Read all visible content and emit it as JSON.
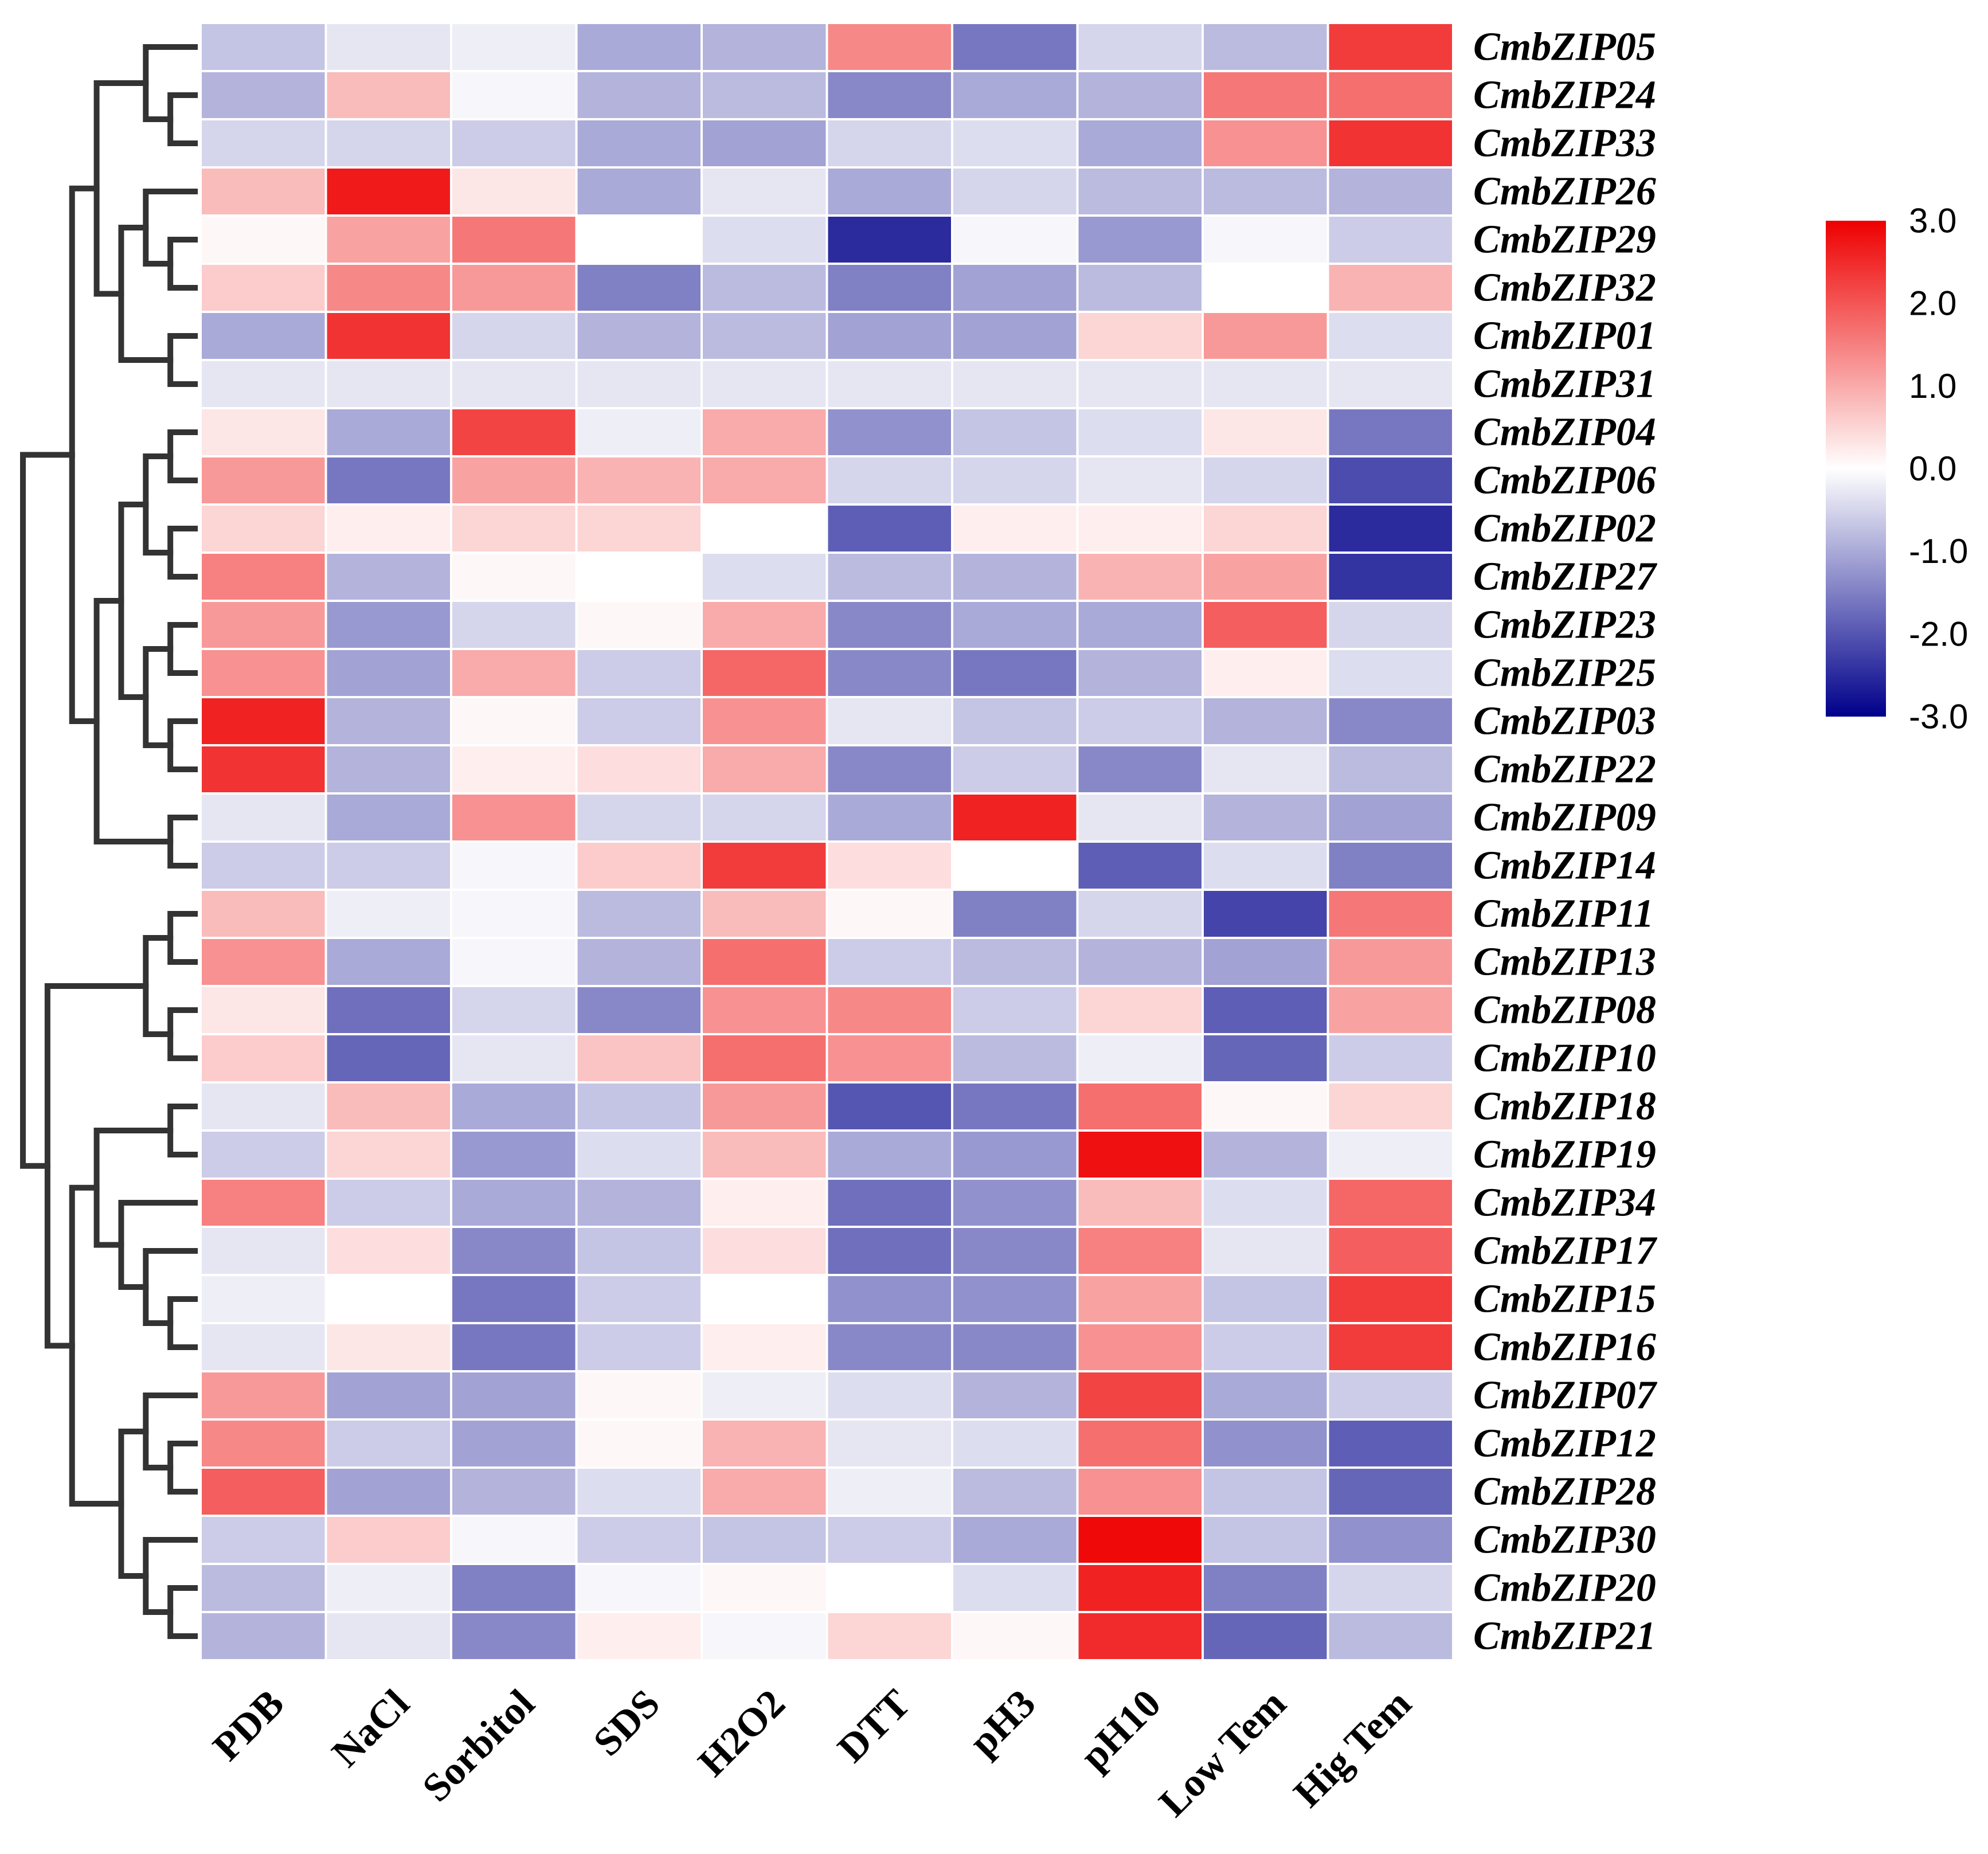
{
  "chart_data": {
    "type": "heatmap",
    "title": "",
    "columns": [
      "PDB",
      "NaCl",
      "Sorbitol",
      "SDS",
      "H2O2",
      "DTT",
      "pH3",
      "pH10",
      "Low Tem",
      "Hig Tem"
    ],
    "rows": [
      {
        "gene": "CmbZIP05",
        "values": [
          -0.7,
          -0.3,
          -0.2,
          -1.0,
          -0.9,
          1.4,
          -1.6,
          -0.5,
          -0.8,
          2.3
        ]
      },
      {
        "gene": "CmbZIP24",
        "values": [
          -0.9,
          0.8,
          -0.1,
          -0.9,
          -0.8,
          -1.4,
          -1.0,
          -0.9,
          1.6,
          1.7
        ]
      },
      {
        "gene": "CmbZIP33",
        "values": [
          -0.5,
          -0.5,
          -0.6,
          -1.0,
          -1.1,
          -0.5,
          -0.4,
          -1.0,
          1.3,
          2.4
        ]
      },
      {
        "gene": "CmbZIP26",
        "values": [
          0.8,
          2.7,
          0.3,
          -1.0,
          -0.3,
          -1.0,
          -0.5,
          -0.8,
          -0.8,
          -0.9
        ]
      },
      {
        "gene": "CmbZIP29",
        "values": [
          0.1,
          1.1,
          1.6,
          0.0,
          -0.4,
          -2.5,
          -0.1,
          -1.2,
          -0.1,
          -0.6
        ]
      },
      {
        "gene": "CmbZIP32",
        "values": [
          0.6,
          1.4,
          1.2,
          -1.5,
          -0.8,
          -1.5,
          -1.1,
          -0.8,
          0.0,
          0.9
        ]
      },
      {
        "gene": "CmbZIP01",
        "values": [
          -1.0,
          2.4,
          -0.5,
          -0.9,
          -0.8,
          -1.1,
          -1.1,
          0.5,
          1.2,
          -0.4
        ]
      },
      {
        "gene": "CmbZIP31",
        "values": [
          -0.3,
          -0.3,
          -0.3,
          -0.3,
          -0.3,
          -0.3,
          -0.3,
          -0.3,
          -0.3,
          -0.3
        ]
      },
      {
        "gene": "CmbZIP04",
        "values": [
          0.3,
          -1.0,
          2.2,
          -0.2,
          1.0,
          -1.3,
          -0.7,
          -0.4,
          0.3,
          -1.6
        ]
      },
      {
        "gene": "CmbZIP06",
        "values": [
          1.2,
          -1.6,
          1.1,
          0.9,
          1.0,
          -0.5,
          -0.5,
          -0.3,
          -0.5,
          -2.1
        ]
      },
      {
        "gene": "CmbZIP02",
        "values": [
          0.5,
          0.2,
          0.5,
          0.5,
          0.0,
          -1.9,
          0.2,
          0.2,
          0.5,
          -2.5
        ]
      },
      {
        "gene": "CmbZIP27",
        "values": [
          1.5,
          -0.9,
          0.1,
          0.0,
          -0.4,
          -0.8,
          -0.9,
          0.9,
          1.1,
          -2.4
        ]
      },
      {
        "gene": "CmbZIP23",
        "values": [
          1.2,
          -1.2,
          -0.5,
          0.1,
          1.0,
          -1.4,
          -1.0,
          -1.0,
          1.9,
          -0.5
        ]
      },
      {
        "gene": "CmbZIP25",
        "values": [
          1.3,
          -1.1,
          1.0,
          -0.6,
          1.8,
          -1.4,
          -1.6,
          -0.9,
          0.2,
          -0.4
        ]
      },
      {
        "gene": "CmbZIP03",
        "values": [
          2.6,
          -0.9,
          0.1,
          -0.6,
          1.3,
          -0.3,
          -0.7,
          -0.6,
          -0.9,
          -1.4
        ]
      },
      {
        "gene": "CmbZIP22",
        "values": [
          2.4,
          -0.9,
          0.2,
          0.4,
          1.0,
          -1.4,
          -0.6,
          -1.4,
          -0.3,
          -0.8
        ]
      },
      {
        "gene": "CmbZIP09",
        "values": [
          -0.3,
          -1.0,
          1.3,
          -0.5,
          -0.5,
          -1.0,
          2.6,
          -0.3,
          -0.9,
          -1.1
        ]
      },
      {
        "gene": "CmbZIP14",
        "values": [
          -0.6,
          -0.6,
          -0.1,
          0.6,
          2.3,
          0.4,
          0.0,
          -1.9,
          -0.4,
          -1.5
        ]
      },
      {
        "gene": "CmbZIP11",
        "values": [
          0.8,
          -0.2,
          -0.1,
          -0.8,
          0.8,
          0.1,
          -1.5,
          -0.5,
          -2.2,
          1.6
        ]
      },
      {
        "gene": "CmbZIP13",
        "values": [
          1.3,
          -1.0,
          -0.1,
          -0.9,
          1.7,
          -0.6,
          -0.8,
          -0.9,
          -1.1,
          1.2
        ]
      },
      {
        "gene": "CmbZIP08",
        "values": [
          0.3,
          -1.7,
          -0.5,
          -1.4,
          1.3,
          1.4,
          -0.6,
          0.5,
          -1.9,
          1.1
        ]
      },
      {
        "gene": "CmbZIP10",
        "values": [
          0.6,
          -1.8,
          -0.3,
          0.7,
          1.7,
          1.3,
          -0.8,
          -0.2,
          -1.8,
          -0.6
        ]
      },
      {
        "gene": "CmbZIP18",
        "values": [
          -0.3,
          0.8,
          -1.0,
          -0.7,
          1.2,
          -2.0,
          -1.6,
          1.7,
          0.1,
          0.5
        ]
      },
      {
        "gene": "CmbZIP19",
        "values": [
          -0.6,
          0.5,
          -1.2,
          -0.4,
          0.8,
          -1.0,
          -1.2,
          2.8,
          -0.9,
          -0.2
        ]
      },
      {
        "gene": "CmbZIP34",
        "values": [
          1.5,
          -0.6,
          -1.0,
          -0.9,
          0.2,
          -1.7,
          -1.3,
          0.8,
          -0.4,
          1.8
        ]
      },
      {
        "gene": "CmbZIP17",
        "values": [
          -0.3,
          0.4,
          -1.4,
          -0.7,
          0.4,
          -1.7,
          -1.4,
          1.5,
          -0.3,
          1.9
        ]
      },
      {
        "gene": "CmbZIP15",
        "values": [
          -0.2,
          0.0,
          -1.6,
          -0.6,
          0.0,
          -1.3,
          -1.3,
          1.1,
          -0.7,
          2.3
        ]
      },
      {
        "gene": "CmbZIP16",
        "values": [
          -0.3,
          0.3,
          -1.6,
          -0.6,
          0.2,
          -1.4,
          -1.4,
          1.3,
          -0.6,
          2.3
        ]
      },
      {
        "gene": "CmbZIP07",
        "values": [
          1.2,
          -1.1,
          -1.1,
          0.1,
          -0.2,
          -0.4,
          -0.9,
          2.2,
          -1.0,
          -0.6
        ]
      },
      {
        "gene": "CmbZIP12",
        "values": [
          1.4,
          -0.6,
          -1.1,
          0.1,
          0.9,
          -0.3,
          -0.4,
          1.7,
          -1.3,
          -1.9
        ]
      },
      {
        "gene": "CmbZIP28",
        "values": [
          1.9,
          -1.1,
          -0.9,
          -0.4,
          1.0,
          -0.2,
          -0.8,
          1.3,
          -0.7,
          -1.8
        ]
      },
      {
        "gene": "CmbZIP30",
        "values": [
          -0.6,
          0.6,
          -0.1,
          -0.6,
          -0.7,
          -0.6,
          -1.0,
          2.9,
          -0.7,
          -1.3
        ]
      },
      {
        "gene": "CmbZIP20",
        "values": [
          -0.8,
          -0.2,
          -1.5,
          -0.1,
          0.1,
          0.0,
          -0.4,
          2.6,
          -1.5,
          -0.5
        ]
      },
      {
        "gene": "CmbZIP21",
        "values": [
          -0.9,
          -0.3,
          -1.4,
          0.2,
          -0.1,
          0.5,
          0.1,
          2.5,
          -1.8,
          -0.8
        ]
      }
    ],
    "color_scale": {
      "min": -3.0,
      "max": 3.0,
      "low_color": "#00008b",
      "mid_color": "#ffffff",
      "high_color": "#ee0000",
      "ticks": [
        "3.0",
        "2.0",
        "1.0",
        "0.0",
        "-1.0",
        "-2.0",
        "-3.0"
      ]
    },
    "dendrogram": {
      "side": "left",
      "tree": [
        [
          [
            [
              "CmbZIP05",
              [
                "CmbZIP24",
                "CmbZIP33"
              ]
            ],
            [
              [
                "CmbZIP26",
                [
                  "CmbZIP29",
                  "CmbZIP32"
                ]
              ],
              [
                "CmbZIP01",
                "CmbZIP31"
              ]
            ]
          ],
          [
            [
              [
                [
                  "CmbZIP04",
                  "CmbZIP06"
                ],
                [
                  "CmbZIP02",
                  "CmbZIP27"
                ]
              ],
              [
                [
                  "CmbZIP23",
                  "CmbZIP25"
                ],
                [
                  "CmbZIP03",
                  "CmbZIP22"
                ]
              ]
            ],
            [
              "CmbZIP09",
              "CmbZIP14"
            ]
          ]
        ],
        [
          [
            [
              "CmbZIP11",
              "CmbZIP13"
            ],
            [
              "CmbZIP08",
              "CmbZIP10"
            ]
          ],
          [
            [
              [
                "CmbZIP18",
                "CmbZIP19"
              ],
              [
                "CmbZIP34",
                [
                  "CmbZIP17",
                  [
                    "CmbZIP15",
                    "CmbZIP16"
                  ]
                ]
              ]
            ],
            [
              [
                "CmbZIP07",
                [
                  "CmbZIP12",
                  "CmbZIP28"
                ]
              ],
              [
                "CmbZIP30",
                [
                  "CmbZIP20",
                  "CmbZIP21"
                ]
              ]
            ]
          ]
        ]
      ]
    }
  }
}
